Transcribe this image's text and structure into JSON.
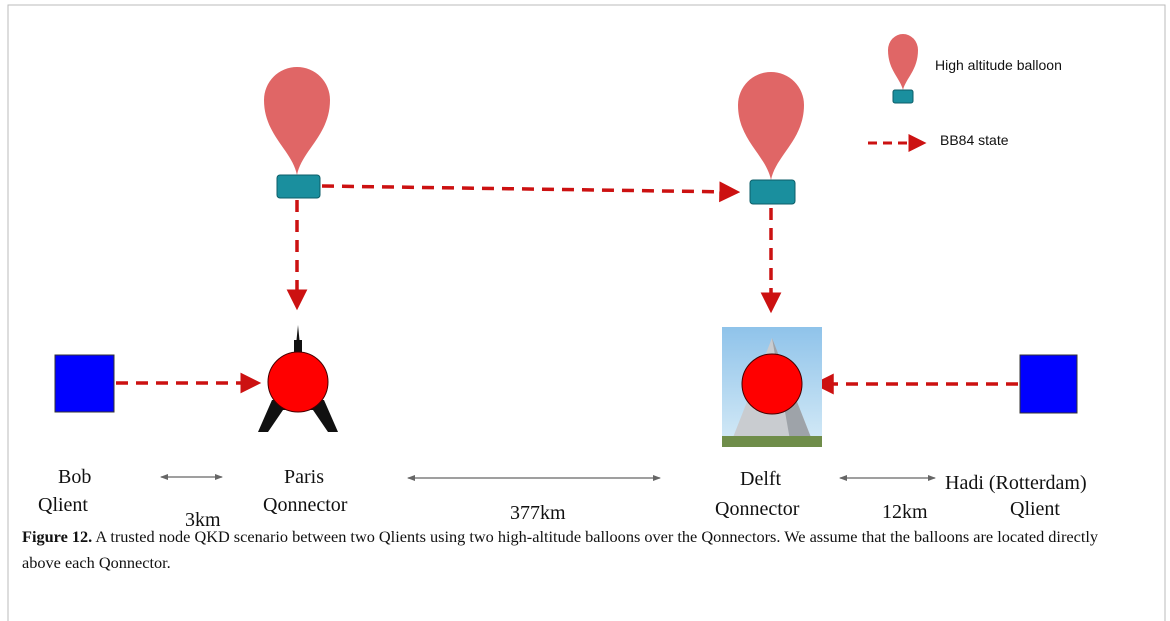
{
  "legend": [
    {
      "label": "High altitude balloon"
    },
    {
      "label": "BB84 state"
    }
  ],
  "nodes": [
    {
      "name": "Bob",
      "role": "Qlient"
    },
    {
      "name": "Paris",
      "role": "Qonnector"
    },
    {
      "name": "Delft",
      "role": "Qonnector"
    },
    {
      "name": "Hadi (Rotterdam)",
      "role": "Qlient"
    }
  ],
  "distances": [
    "3km",
    "377km",
    "12km"
  ],
  "caption": {
    "label": "Figure 12.",
    "text": "A trusted node QKD scenario between two Qlients using two high-altitude balloons over the Qonnectors. We assume that the balloons are located directly above each Qonnector."
  }
}
